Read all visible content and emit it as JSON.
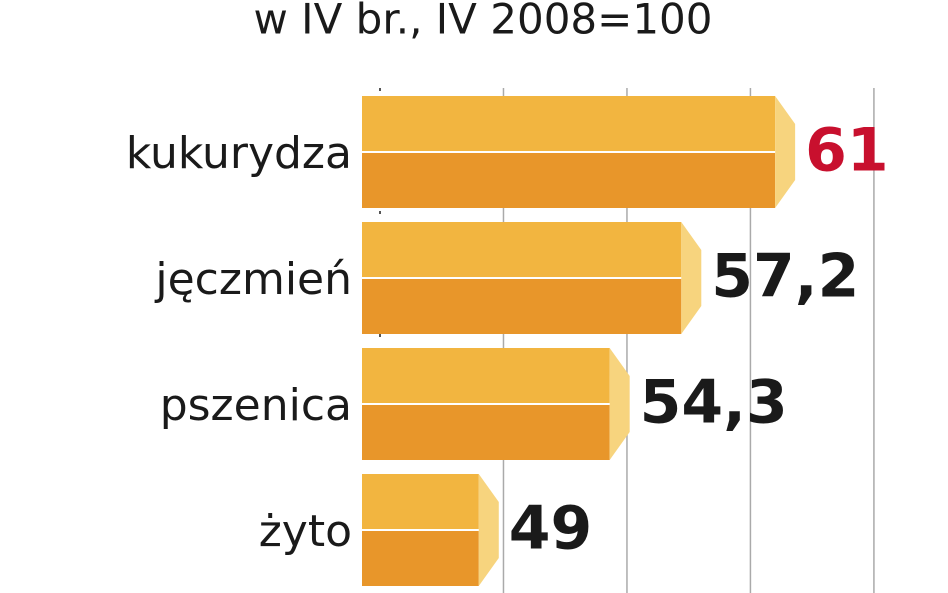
{
  "chart_data": {
    "type": "bar",
    "orientation": "horizontal",
    "title": "w IV br., IV 2008=100",
    "categories": [
      "kukurydza",
      "jęczmień",
      "pszenica",
      "żyto"
    ],
    "values": [
      61,
      57.2,
      54.3,
      49
    ],
    "value_labels": [
      "61",
      "57,2",
      "54,3",
      "49"
    ],
    "value_label_colors": [
      "#c8102e",
      "#1a1a1a",
      "#1a1a1a",
      "#1a1a1a"
    ],
    "color": "#e8962a",
    "top_color": "#f2b540",
    "cap_color": "#f7d47e",
    "xlim": [
      45,
      68
    ],
    "xticks": [
      45,
      50,
      55,
      60,
      65
    ],
    "grid": true
  }
}
